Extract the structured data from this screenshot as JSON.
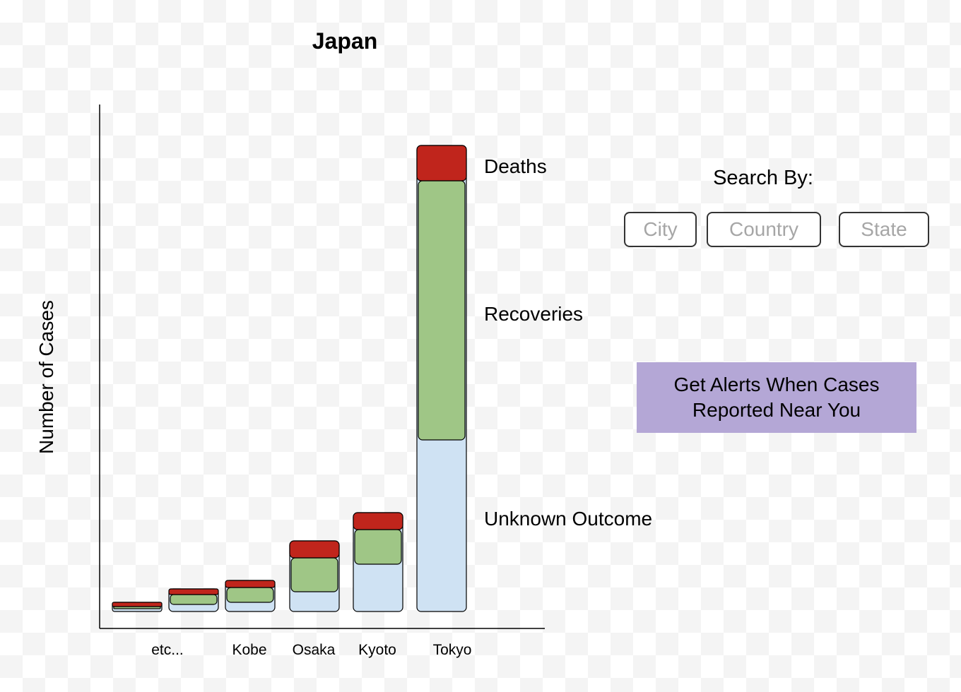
{
  "chart_data": {
    "type": "bar",
    "stacked": true,
    "title": "Japan",
    "xlabel": "",
    "ylabel": "Number of Cases",
    "categories": [
      "etc...",
      "etc...",
      "Kobe",
      "Osaka",
      "Kyoto",
      "Tokyo"
    ],
    "category_labels": [
      "etc...",
      "Kobe",
      "Osaka",
      "Kyoto",
      "Tokyo"
    ],
    "series": [
      {
        "name": "Unknown Outcome",
        "color": "#cfe2f3",
        "values": [
          4,
          10,
          13,
          28,
          67,
          243
        ]
      },
      {
        "name": "Recoveries",
        "color": "#9fc686",
        "values": [
          3,
          14,
          21,
          48,
          49,
          367
        ]
      },
      {
        "name": "Deaths",
        "color": "#c0251c",
        "values": [
          6,
          8,
          10,
          24,
          24,
          50
        ]
      }
    ],
    "segment_labels": [
      "Deaths",
      "Recoveries",
      "Unknown Outcome"
    ],
    "ylim": [
      0,
      720
    ],
    "grid": false
  },
  "search": {
    "label": "Search By:",
    "buttons": [
      "City",
      "Country",
      "State"
    ]
  },
  "alert": {
    "line1": "Get Alerts When Cases",
    "line2": "Reported Near You"
  }
}
